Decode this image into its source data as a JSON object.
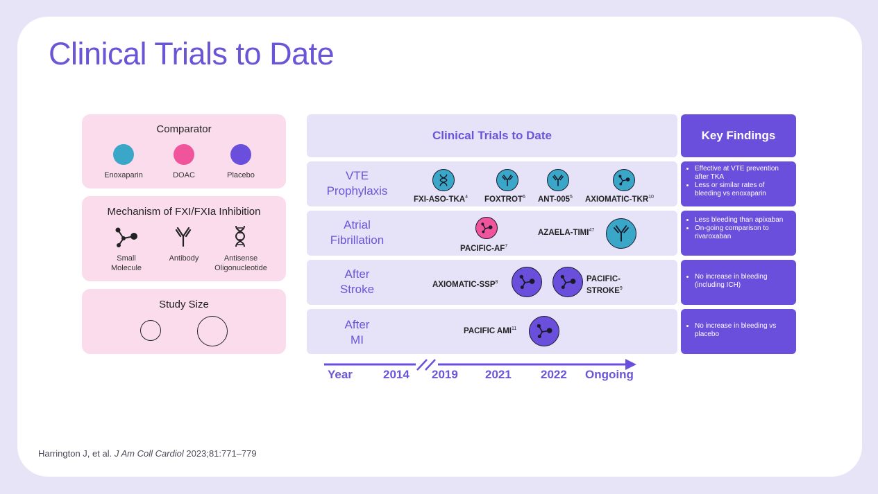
{
  "title": "Clinical Trials to Date",
  "citation": {
    "prefix": "Harrington J, et al.",
    "journal": "J Am Coll Cardiol",
    "suffix": "2023;81:771–779"
  },
  "colors": {
    "accent": "#6a55d6",
    "enoxaparin": "#3aa7c9",
    "doac": "#f0549b",
    "placebo": "#6a4fdc",
    "legend_bg": "#fbdcec",
    "panel_bg": "#e6e2f8"
  },
  "comparator": {
    "title": "Comparator",
    "items": [
      "Enoxaparin",
      "DOAC",
      "Placebo"
    ]
  },
  "mechanism": {
    "title": "Mechanism of FXI/FXIa Inhibition",
    "items": [
      {
        "line1": "Small",
        "line2": "Molecule",
        "icon": "small-molecule-icon"
      },
      {
        "line1": "Antibody",
        "line2": "",
        "icon": "antibody-icon"
      },
      {
        "line1": "Antisense",
        "line2": "Oligonucleotide",
        "icon": "dna-icon"
      }
    ]
  },
  "study_size": {
    "title": "Study Size"
  },
  "trials_panel": {
    "header": "Clinical Trials to Date",
    "rows": [
      {
        "label1": "VTE",
        "label2": "Prophylaxis",
        "trials": [
          {
            "name": "FXI-ASO-TKA",
            "ref": "4",
            "comparator": "enoxaparin",
            "mechanism": "dna-icon"
          },
          {
            "name": "FOXTROT",
            "ref": "6",
            "comparator": "enoxaparin",
            "mechanism": "antibody-icon"
          },
          {
            "name": "ANT-005",
            "ref": "5",
            "comparator": "enoxaparin",
            "mechanism": "antibody-icon"
          },
          {
            "name": "AXIOMATIC-TKR",
            "ref": "10",
            "comparator": "enoxaparin",
            "mechanism": "small-molecule-icon"
          }
        ]
      },
      {
        "label1": "Atrial",
        "label2": "Fibrillation",
        "trials": [
          {
            "name": "PACIFIC-AF",
            "ref": "7",
            "comparator": "doac",
            "mechanism": "small-molecule-icon"
          },
          {
            "name": "AZAELA-TIMI",
            "ref": "47",
            "comparator": "enoxaparin",
            "mechanism": "antibody-icon"
          }
        ]
      },
      {
        "label1": "After",
        "label2": "Stroke",
        "trials": [
          {
            "name": "AXIOMATIC-SSP",
            "ref": "8",
            "comparator": "placebo",
            "mechanism": "small-molecule-icon"
          },
          {
            "name1": "PACIFIC-",
            "name2": "STROKE",
            "ref": "9",
            "comparator": "placebo",
            "mechanism": "small-molecule-icon"
          }
        ]
      },
      {
        "label1": "After",
        "label2": "MI",
        "trials": [
          {
            "name": "PACIFIC AMI",
            "ref": "11",
            "comparator": "placebo",
            "mechanism": "small-molecule-icon"
          }
        ]
      }
    ]
  },
  "key_findings": {
    "header": "Key Findings",
    "rows": [
      [
        "Effective at VTE prevention after TKA",
        "Less or similar rates of bleeding vs enoxaparin"
      ],
      [
        "Less bleeding than apixaban",
        "On-going comparison to rivaroxaban"
      ],
      [
        "No increase in bleeding (including ICH)"
      ],
      [
        "No increase in bleeding vs placebo"
      ]
    ]
  },
  "timeline": {
    "labels": [
      "Year",
      "2014",
      "2019",
      "2021",
      "2022",
      "Ongoing"
    ]
  }
}
